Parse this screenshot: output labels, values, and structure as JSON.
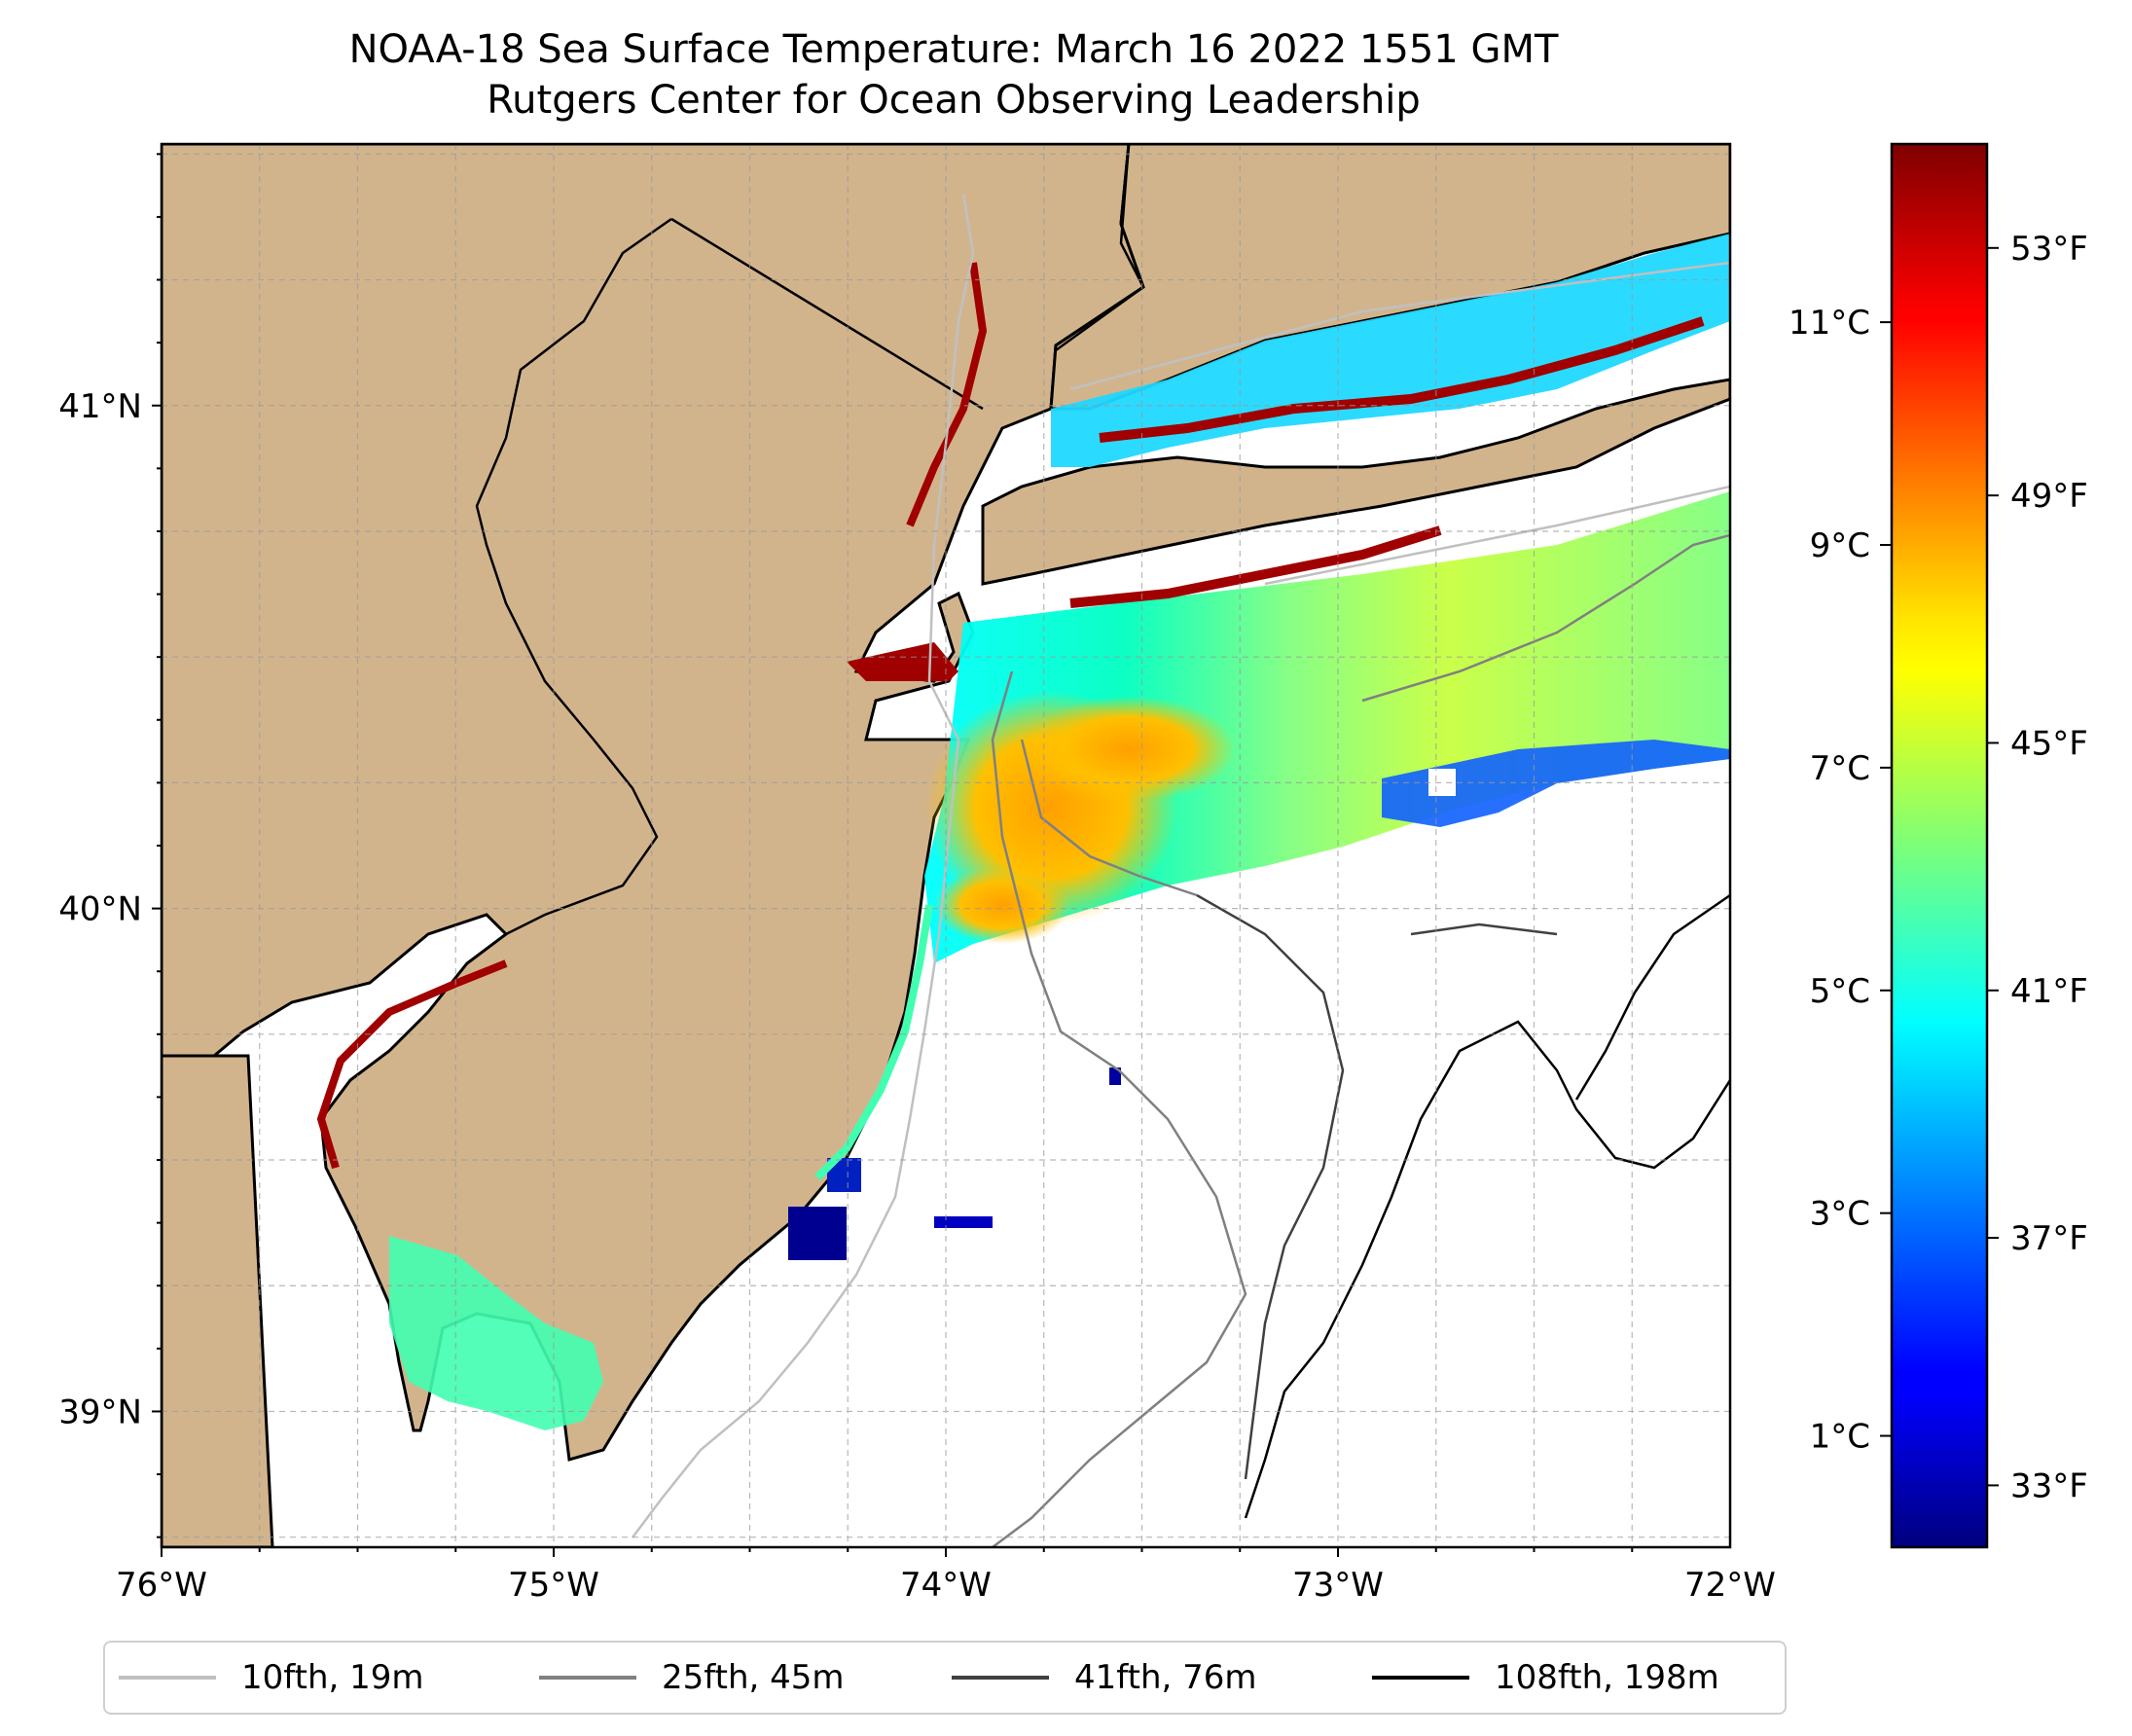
{
  "title": {
    "line1": "NOAA-18 Sea Surface Temperature: March 16 2022 1551 GMT",
    "line2": "Rutgers Center for Ocean Observing Leadership"
  },
  "map": {
    "lon_range": [
      -76,
      -72
    ],
    "lat_range": [
      38.73,
      41.52
    ],
    "lon_ticks": [
      {
        "value": -76,
        "label": "76°W"
      },
      {
        "value": -75,
        "label": "75°W"
      },
      {
        "value": -74,
        "label": "74°W"
      },
      {
        "value": -73,
        "label": "73°W"
      },
      {
        "value": -72,
        "label": "72°W"
      }
    ],
    "lat_ticks": [
      {
        "value": 39,
        "label": "39°N"
      },
      {
        "value": 40,
        "label": "40°N"
      },
      {
        "value": 41,
        "label": "41°N"
      }
    ],
    "land_color": "#d2b48c",
    "ocean_color": "#ffffff",
    "grid": true
  },
  "colorbar": {
    "colormap": "jet",
    "celsius_ticks": [
      {
        "value": 1,
        "label": "1°C"
      },
      {
        "value": 3,
        "label": "3°C"
      },
      {
        "value": 5,
        "label": "5°C"
      },
      {
        "value": 7,
        "label": "7°C"
      },
      {
        "value": 9,
        "label": "9°C"
      },
      {
        "value": 11,
        "label": "11°C"
      }
    ],
    "fahrenheit_ticks": [
      {
        "value": 33,
        "label": "33°F"
      },
      {
        "value": 37,
        "label": "37°F"
      },
      {
        "value": 41,
        "label": "41°F"
      },
      {
        "value": 45,
        "label": "45°F"
      },
      {
        "value": 49,
        "label": "49°F"
      },
      {
        "value": 53,
        "label": "53°F"
      }
    ]
  },
  "legend": {
    "items": [
      {
        "label": "10fth, 19m",
        "color": "#c0c0c0"
      },
      {
        "label": "25fth, 45m",
        "color": "#808080"
      },
      {
        "label": "41fth, 76m",
        "color": "#404040"
      },
      {
        "label": "108fth, 198m",
        "color": "#000000"
      }
    ]
  }
}
